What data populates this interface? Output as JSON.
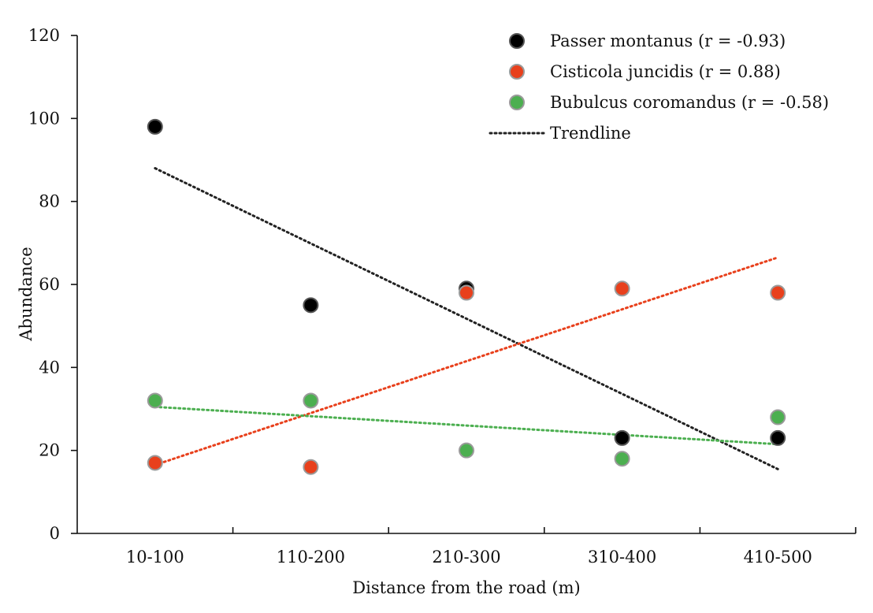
{
  "chart_data": {
    "type": "scatter",
    "title": "",
    "xlabel": "Distance from the road (m)",
    "ylabel": "Abundance",
    "categories": [
      "10-100",
      "110-200",
      "210-300",
      "310-400",
      "410-500"
    ],
    "ylim": [
      0,
      120
    ],
    "yticks": [
      "0",
      "20",
      "40",
      "60",
      "80",
      "100",
      "120"
    ],
    "grid": false,
    "legend_position": "top-right",
    "series": [
      {
        "name": "Passer montanus (r = -0.93)",
        "color": "#000000",
        "values": [
          98,
          55,
          59,
          23,
          23
        ],
        "trend": [
          88,
          15.5
        ]
      },
      {
        "name": "Cisticola juncidis (r = 0.88)",
        "color": "#e8401c",
        "values": [
          17,
          16,
          58,
          59,
          58
        ],
        "trend": [
          16.5,
          66.5
        ]
      },
      {
        "name": "Bubulcus coromandus (r = -0.58)",
        "color": "#4caf50",
        "values": [
          32,
          32,
          20,
          18,
          28
        ],
        "trend": [
          30.5,
          21.5
        ]
      }
    ],
    "trendline_label": "Trendline"
  }
}
